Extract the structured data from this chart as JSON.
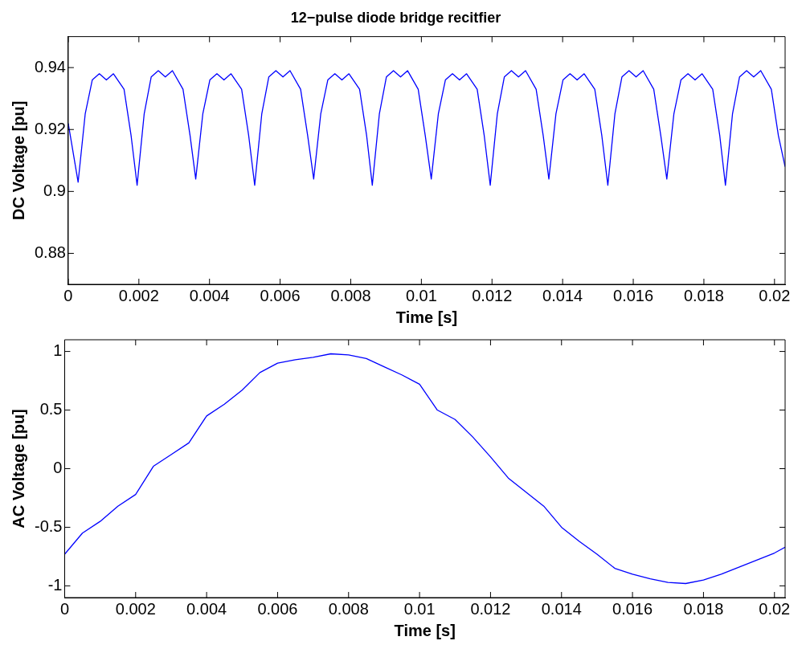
{
  "chart_data": [
    {
      "type": "line",
      "title": "12−pulse diode bridge recitfier",
      "xlabel": "Time [s]",
      "ylabel": "DC Voltage [pu]",
      "series": [
        {
          "color": "#0000ff",
          "x": [
            0,
            0.00028,
            0.00048,
            0.00068,
            0.00088,
            0.00108,
            0.00128,
            0.00158,
            0.00178,
            0.00195,
            0.00215,
            0.00235,
            0.00255,
            0.00275,
            0.00295,
            0.00325,
            0.00345,
            0.00361,
            0.00381,
            0.00401,
            0.00421,
            0.00441,
            0.00461,
            0.00491,
            0.00511,
            0.00528,
            0.00548,
            0.00568,
            0.00588,
            0.00608,
            0.00628,
            0.00658,
            0.00678,
            0.00695,
            0.00715,
            0.00735,
            0.00755,
            0.00775,
            0.00795,
            0.00825,
            0.00845,
            0.00861,
            0.00881,
            0.00901,
            0.00921,
            0.00941,
            0.00961,
            0.00991,
            0.01011,
            0.01028,
            0.01048,
            0.01068,
            0.01088,
            0.01108,
            0.01128,
            0.01158,
            0.01178,
            0.01195,
            0.01215,
            0.01235,
            0.01255,
            0.01275,
            0.01295,
            0.01325,
            0.01345,
            0.01361,
            0.01381,
            0.01401,
            0.01421,
            0.01441,
            0.01461,
            0.01491,
            0.01511,
            0.01528,
            0.01548,
            0.01568,
            0.01588,
            0.01608,
            0.01628,
            0.01658,
            0.01678,
            0.01695,
            0.01715,
            0.01735,
            0.01755,
            0.01775,
            0.01795,
            0.01825,
            0.01845,
            0.01861,
            0.01881,
            0.01901,
            0.01921,
            0.01941,
            0.01961,
            0.01991,
            0.02011,
            0.0203
          ],
          "values": [
            0.922,
            0.903,
            0.925,
            0.936,
            0.938,
            0.936,
            0.938,
            0.933,
            0.918,
            0.902,
            0.925,
            0.937,
            0.939,
            0.937,
            0.939,
            0.933,
            0.918,
            0.904,
            0.925,
            0.936,
            0.938,
            0.936,
            0.938,
            0.933,
            0.918,
            0.902,
            0.925,
            0.937,
            0.939,
            0.937,
            0.939,
            0.933,
            0.918,
            0.904,
            0.925,
            0.936,
            0.938,
            0.936,
            0.938,
            0.933,
            0.918,
            0.902,
            0.925,
            0.937,
            0.939,
            0.937,
            0.939,
            0.933,
            0.918,
            0.904,
            0.925,
            0.936,
            0.938,
            0.936,
            0.938,
            0.933,
            0.918,
            0.902,
            0.925,
            0.937,
            0.939,
            0.937,
            0.939,
            0.933,
            0.918,
            0.904,
            0.925,
            0.936,
            0.938,
            0.936,
            0.938,
            0.933,
            0.918,
            0.902,
            0.925,
            0.937,
            0.939,
            0.937,
            0.939,
            0.933,
            0.918,
            0.904,
            0.925,
            0.936,
            0.938,
            0.936,
            0.938,
            0.933,
            0.918,
            0.902,
            0.925,
            0.937,
            0.939,
            0.937,
            0.939,
            0.933,
            0.918,
            0.908
          ]
        }
      ],
      "xlim": [
        0,
        0.0203
      ],
      "xticks": [
        0,
        0.002,
        0.004,
        0.006,
        0.008,
        0.01,
        0.012,
        0.014,
        0.016,
        0.018,
        0.02
      ],
      "ylim": [
        0.87,
        0.95
      ],
      "yticks": [
        0.88,
        0.9,
        0.92,
        0.94
      ],
      "grid": false,
      "legend": false,
      "marker": "none",
      "line_style": "solid"
    },
    {
      "type": "line",
      "xlabel": "Time [s]",
      "ylabel": "AC Voltage [pu]",
      "series": [
        {
          "color": "#0000ff",
          "x": [
            0,
            0.0005,
            0.001,
            0.0015,
            0.002,
            0.0025,
            0.003,
            0.0035,
            0.004,
            0.0045,
            0.005,
            0.0055,
            0.006,
            0.0065,
            0.007,
            0.0075,
            0.008,
            0.0085,
            0.009,
            0.0095,
            0.01,
            0.0105,
            0.011,
            0.0115,
            0.012,
            0.0125,
            0.013,
            0.0135,
            0.014,
            0.0145,
            0.015,
            0.0155,
            0.016,
            0.0165,
            0.017,
            0.0175,
            0.018,
            0.0185,
            0.019,
            0.0195,
            0.02,
            0.0203
          ],
          "values": [
            -0.73,
            -0.55,
            -0.45,
            -0.32,
            -0.22,
            0.02,
            0.12,
            0.22,
            0.45,
            0.55,
            0.67,
            0.82,
            0.9,
            0.93,
            0.95,
            0.98,
            0.97,
            0.94,
            0.87,
            0.8,
            0.72,
            0.5,
            0.42,
            0.27,
            0.1,
            -0.08,
            -0.2,
            -0.32,
            -0.5,
            -0.62,
            -0.73,
            -0.85,
            -0.9,
            -0.94,
            -0.97,
            -0.98,
            -0.95,
            -0.9,
            -0.84,
            -0.78,
            -0.72,
            -0.67
          ]
        }
      ],
      "xlim": [
        0,
        0.0203
      ],
      "xticks": [
        0,
        0.002,
        0.004,
        0.006,
        0.008,
        0.01,
        0.012,
        0.014,
        0.016,
        0.018,
        0.02
      ],
      "ylim": [
        -1.1,
        1.1
      ],
      "yticks": [
        -1,
        -0.5,
        0,
        0.5,
        1
      ],
      "grid": false,
      "legend": false,
      "marker": "none",
      "line_style": "solid"
    }
  ]
}
